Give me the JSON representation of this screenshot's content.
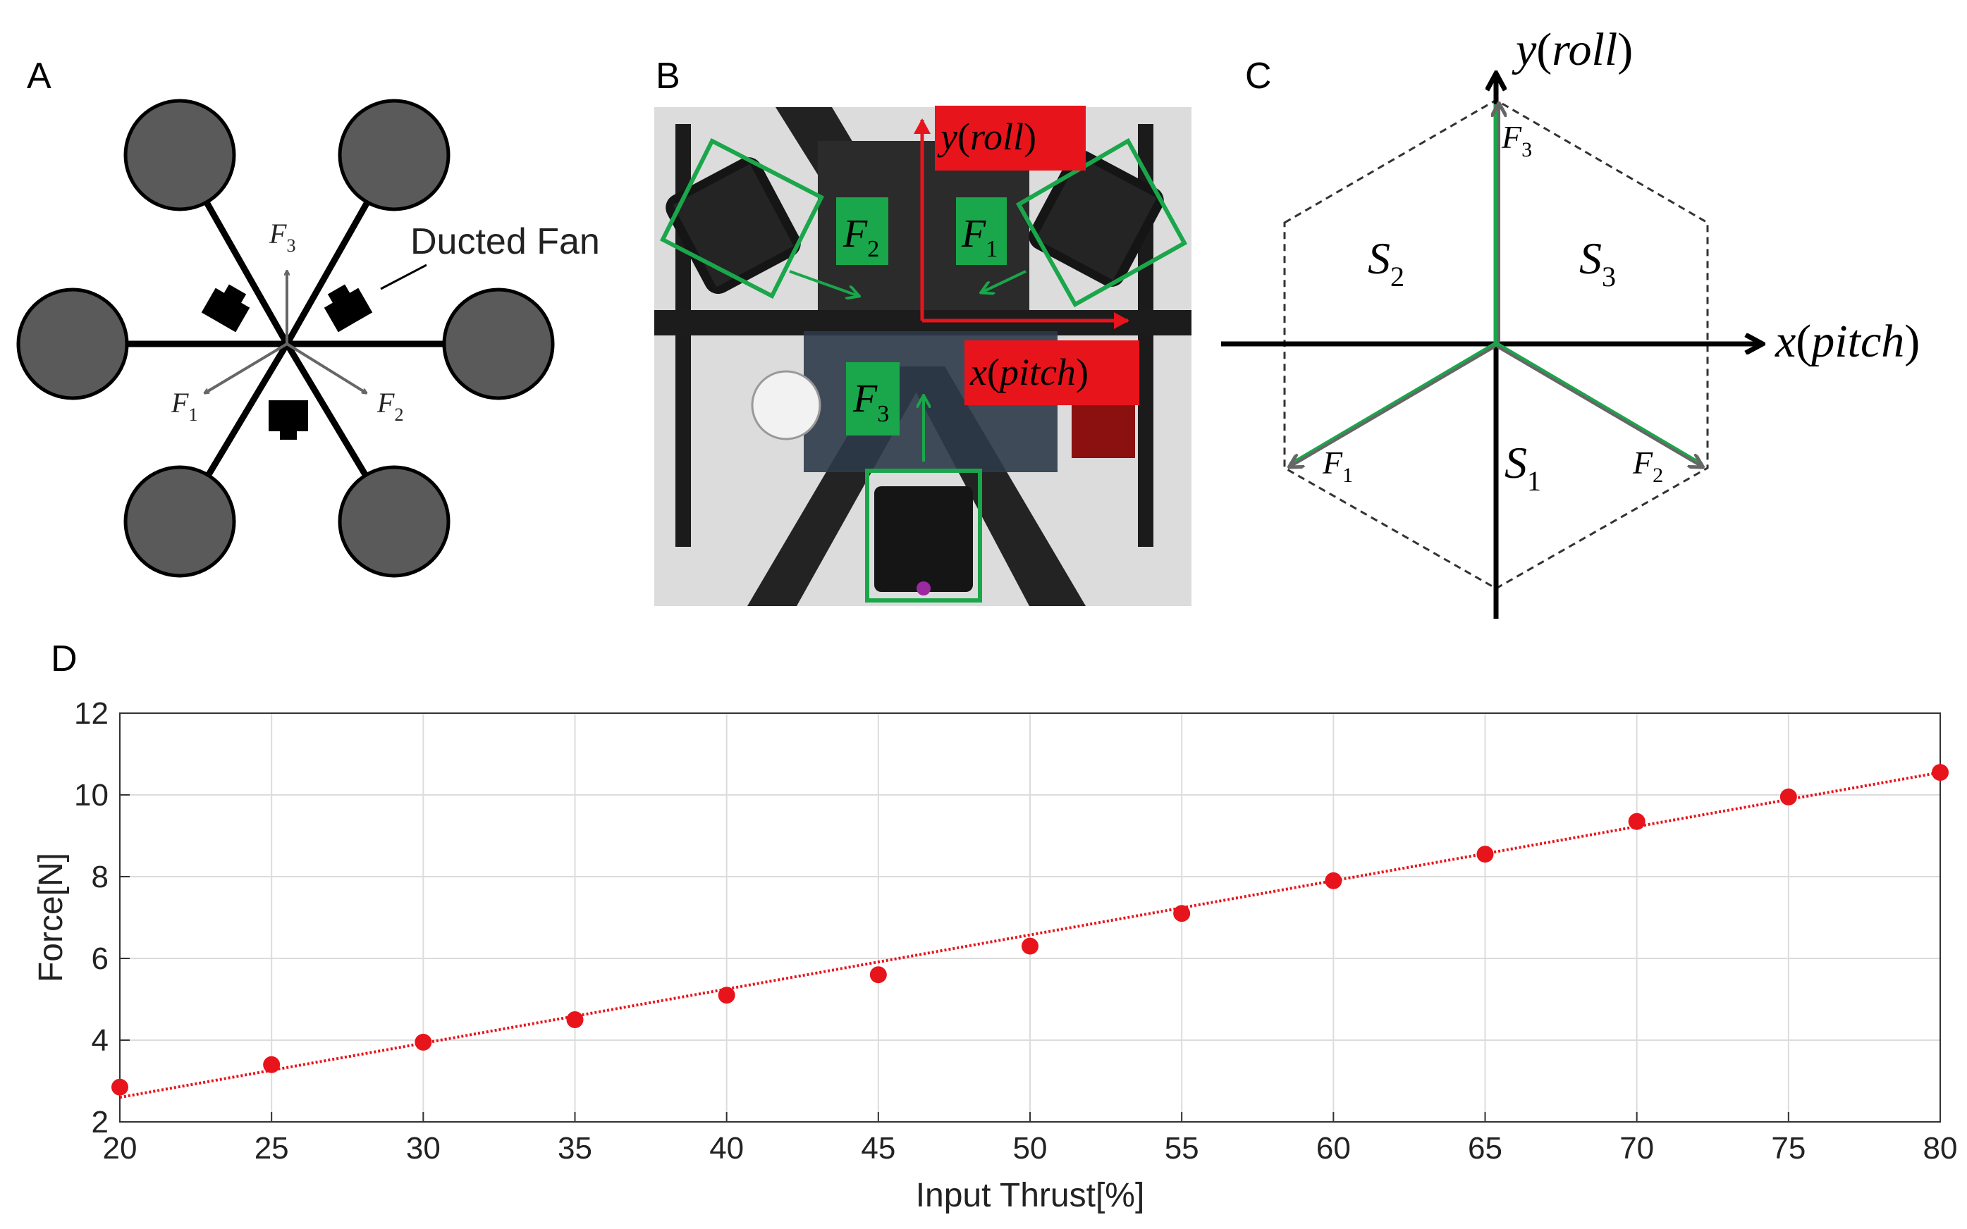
{
  "panels": {
    "a": {
      "letter": "A",
      "callout": "Ducted Fan",
      "forces": [
        {
          "sym": "F",
          "sub": "3"
        },
        {
          "sym": "F",
          "sub": "1"
        },
        {
          "sym": "F",
          "sub": "2"
        }
      ]
    },
    "b": {
      "letter": "B",
      "y_axis": {
        "var": "y",
        "name": "roll"
      },
      "x_axis": {
        "var": "x",
        "name": "pitch"
      },
      "boxes": [
        {
          "sym": "F",
          "sub": "2"
        },
        {
          "sym": "F",
          "sub": "1"
        },
        {
          "sym": "F",
          "sub": "3"
        }
      ]
    },
    "c": {
      "letter": "C",
      "y_axis": {
        "var": "y",
        "name": "roll"
      },
      "x_axis": {
        "var": "x",
        "name": "pitch"
      },
      "regions": [
        {
          "sym": "S",
          "sub": "2"
        },
        {
          "sym": "S",
          "sub": "3"
        },
        {
          "sym": "S",
          "sub": "1"
        }
      ],
      "forces": [
        {
          "sym": "F",
          "sub": "3"
        },
        {
          "sym": "F",
          "sub": "1"
        },
        {
          "sym": "F",
          "sub": "2"
        }
      ]
    },
    "d": {
      "letter": "D"
    }
  },
  "colors": {
    "rotor": "#5a5a5a",
    "green": "#1aa64a",
    "label_red": "#e8141b",
    "data_red": "#e8141b",
    "arrow_gray": "#666666"
  },
  "chart_data": {
    "type": "scatter",
    "xlabel": "Input Thrust[%]",
    "ylabel": "Force[N]",
    "xlim": [
      20,
      80
    ],
    "ylim": [
      2,
      12
    ],
    "xticks": [
      20,
      25,
      30,
      35,
      40,
      45,
      50,
      55,
      60,
      65,
      70,
      75,
      80
    ],
    "yticks": [
      2,
      4,
      6,
      8,
      10,
      12
    ],
    "grid": true,
    "series": [
      {
        "x": [
          20,
          25,
          30,
          35,
          40,
          45,
          50,
          55,
          60,
          65,
          70,
          75,
          80
        ],
        "y": [
          2.85,
          3.4,
          3.95,
          4.5,
          5.1,
          5.6,
          6.3,
          7.1,
          7.9,
          8.55,
          9.35,
          9.95,
          10.55
        ]
      }
    ],
    "fit_line": {
      "x": [
        20,
        80
      ],
      "y": [
        2.6,
        10.55
      ],
      "style": "dotted"
    }
  }
}
